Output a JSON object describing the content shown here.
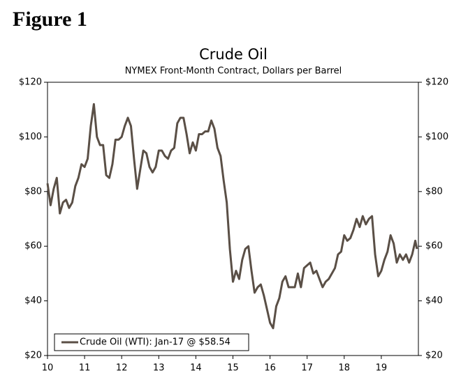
{
  "heading": "Figure 1",
  "chart_data": {
    "type": "line",
    "title": "Crude Oil",
    "subtitle": "NYMEX Front-Month Contract, Dollars per Barrel",
    "x": [
      10,
      10.083,
      10.167,
      10.25,
      10.333,
      10.417,
      10.5,
      10.583,
      10.667,
      10.75,
      10.833,
      10.917,
      11,
      11.083,
      11.167,
      11.25,
      11.333,
      11.417,
      11.5,
      11.583,
      11.667,
      11.75,
      11.833,
      11.917,
      12,
      12.083,
      12.167,
      12.25,
      12.333,
      12.417,
      12.5,
      12.583,
      12.667,
      12.75,
      12.833,
      12.917,
      13,
      13.083,
      13.167,
      13.25,
      13.333,
      13.417,
      13.5,
      13.583,
      13.667,
      13.75,
      13.833,
      13.917,
      14,
      14.083,
      14.167,
      14.25,
      14.333,
      14.417,
      14.5,
      14.583,
      14.667,
      14.75,
      14.833,
      14.917,
      15,
      15.083,
      15.167,
      15.25,
      15.333,
      15.417,
      15.5,
      15.583,
      15.667,
      15.75,
      15.833,
      15.917,
      16,
      16.083,
      16.167,
      16.25,
      16.333,
      16.417,
      16.5,
      16.583,
      16.667,
      16.75,
      16.833,
      16.917,
      17,
      17.083,
      17.167,
      17.25,
      17.333,
      17.417,
      17.5,
      17.583,
      17.667,
      17.75,
      17.833,
      17.917,
      18,
      18.083,
      18.167,
      18.25,
      18.333,
      18.417,
      18.5,
      18.583,
      18.667,
      18.75,
      18.833,
      18.917,
      19,
      19.083,
      19.167,
      19.25,
      19.333,
      19.417,
      19.5,
      19.583,
      19.667,
      19.75,
      19.833,
      19.917,
      19.96
    ],
    "series": [
      {
        "name": "Crude Oil (WTI): Jan-17 @ $58.54",
        "color": "#5a4f46",
        "values": [
          83,
          75,
          81,
          85,
          72,
          76,
          77,
          74,
          76,
          82,
          85,
          90,
          89,
          92,
          104,
          112,
          100,
          97,
          97,
          86,
          85,
          90,
          99,
          99,
          100,
          104,
          107,
          104,
          92,
          81,
          88,
          95,
          94,
          89,
          87,
          89,
          95,
          95,
          93,
          92,
          95,
          96,
          105,
          107,
          107,
          101,
          94,
          98,
          95,
          101,
          101,
          102,
          102,
          106,
          103,
          96,
          93,
          84,
          76,
          59,
          47,
          51,
          48,
          55,
          59,
          60,
          51,
          43,
          45,
          46,
          42,
          37,
          32,
          30,
          38,
          41,
          47,
          49,
          45,
          45,
          45,
          50,
          45,
          52,
          53,
          54,
          50,
          51,
          48,
          45,
          47,
          48,
          50,
          52,
          57,
          58,
          64,
          62,
          63,
          66,
          70,
          67,
          71,
          68,
          70,
          71,
          57,
          49,
          51,
          55,
          58,
          64,
          61,
          54,
          57,
          55,
          57,
          54,
          57,
          62,
          59
        ]
      }
    ],
    "xlim": [
      10,
      20
    ],
    "xticks": [
      10,
      11,
      12,
      13,
      14,
      15,
      16,
      17,
      18,
      19
    ],
    "ylim": [
      20,
      120
    ],
    "yticks": [
      {
        "value": 20,
        "label": "$20"
      },
      {
        "value": 40,
        "label": "$40"
      },
      {
        "value": 60,
        "label": "$60"
      },
      {
        "value": 80,
        "label": "$80"
      },
      {
        "value": 100,
        "label": "$100"
      },
      {
        "value": 120,
        "label": "$120"
      }
    ],
    "y2lim": [
      20,
      120
    ],
    "y2ticks": [
      {
        "value": 20,
        "label": "$20"
      },
      {
        "value": 40,
        "label": "$40"
      },
      {
        "value": 60,
        "label": "$60"
      },
      {
        "value": 80,
        "label": "$80"
      },
      {
        "value": 100,
        "label": "$100"
      },
      {
        "value": 120,
        "label": "$120"
      }
    ],
    "grid": false,
    "legend": "lower left"
  }
}
